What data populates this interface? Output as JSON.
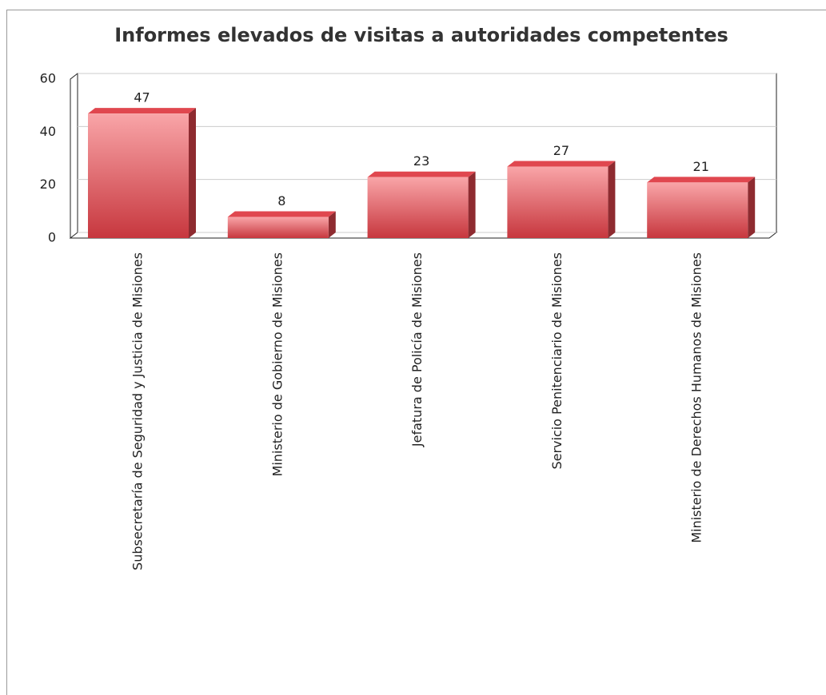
{
  "chart_data": {
    "type": "bar3d",
    "title": "Informes elevados de visitas a autoridades competentes",
    "categories": [
      "Subsecretaría de Seguridad y Justicia de Misiones",
      "Ministerio de Gobierno de Misiones",
      "Jefatura de Policía de Misiones",
      "Servicio Penitenciario de Misiones",
      "Ministerio de Derechos Humanos de Misiones"
    ],
    "values": [
      47,
      8,
      23,
      27,
      21
    ],
    "color": "#e0474f",
    "ylim": [
      0,
      60
    ],
    "yticks": [
      0,
      20,
      40,
      60
    ],
    "grid": true
  }
}
